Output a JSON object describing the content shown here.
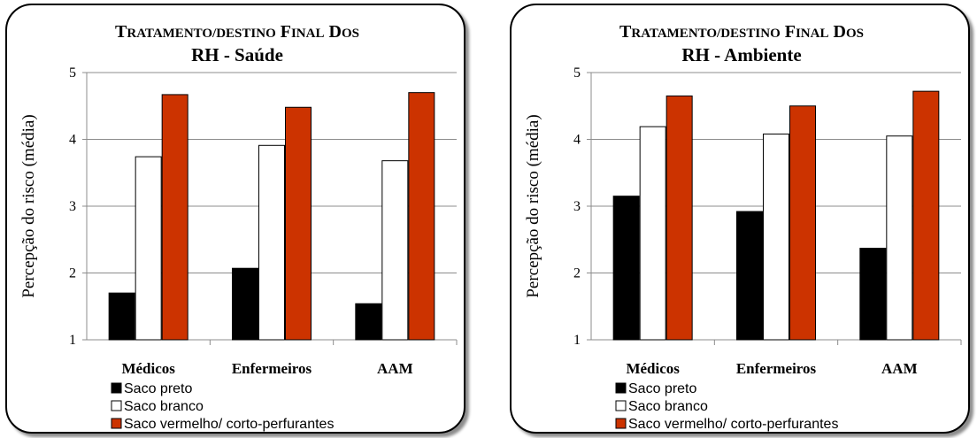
{
  "chart_data": [
    {
      "type": "bar",
      "title_line1": "Tratamento/destino final dos",
      "title_line2": "RH - Saúde",
      "xlabel": "",
      "ylabel": "Percepção do risco (média)",
      "ylim": [
        1,
        5
      ],
      "yticks": [
        "1",
        "2",
        "3",
        "4",
        "5"
      ],
      "categories": [
        "Médicos",
        "Enfermeiros",
        "AAM"
      ],
      "grid": true,
      "legend_position": "bottom",
      "series": [
        {
          "name": "Saco preto",
          "color": "#000000",
          "values": [
            1.7,
            2.07,
            1.54
          ]
        },
        {
          "name": "Saco branco",
          "color": "#ffffff",
          "values": [
            3.74,
            3.91,
            3.68
          ]
        },
        {
          "name": "Saco vermelho/ corto-perfurantes",
          "color": "#cc3300",
          "values": [
            4.67,
            4.48,
            4.7
          ]
        }
      ]
    },
    {
      "type": "bar",
      "title_line1": "Tratamento/destino final dos",
      "title_line2": "RH - Ambiente",
      "xlabel": "",
      "ylabel": "Percepção do risco (média)",
      "ylim": [
        1,
        5
      ],
      "yticks": [
        "1",
        "2",
        "3",
        "4",
        "5"
      ],
      "categories": [
        "Médicos",
        "Enfermeiros",
        "AAM"
      ],
      "grid": true,
      "legend_position": "bottom",
      "series": [
        {
          "name": "Saco preto",
          "color": "#000000",
          "values": [
            3.15,
            2.92,
            2.37
          ]
        },
        {
          "name": "Saco branco",
          "color": "#ffffff",
          "values": [
            4.19,
            4.08,
            4.05
          ]
        },
        {
          "name": "Saco vermelho/ corto-perfurantes",
          "color": "#cc3300",
          "values": [
            4.65,
            4.5,
            4.72
          ]
        }
      ]
    }
  ]
}
